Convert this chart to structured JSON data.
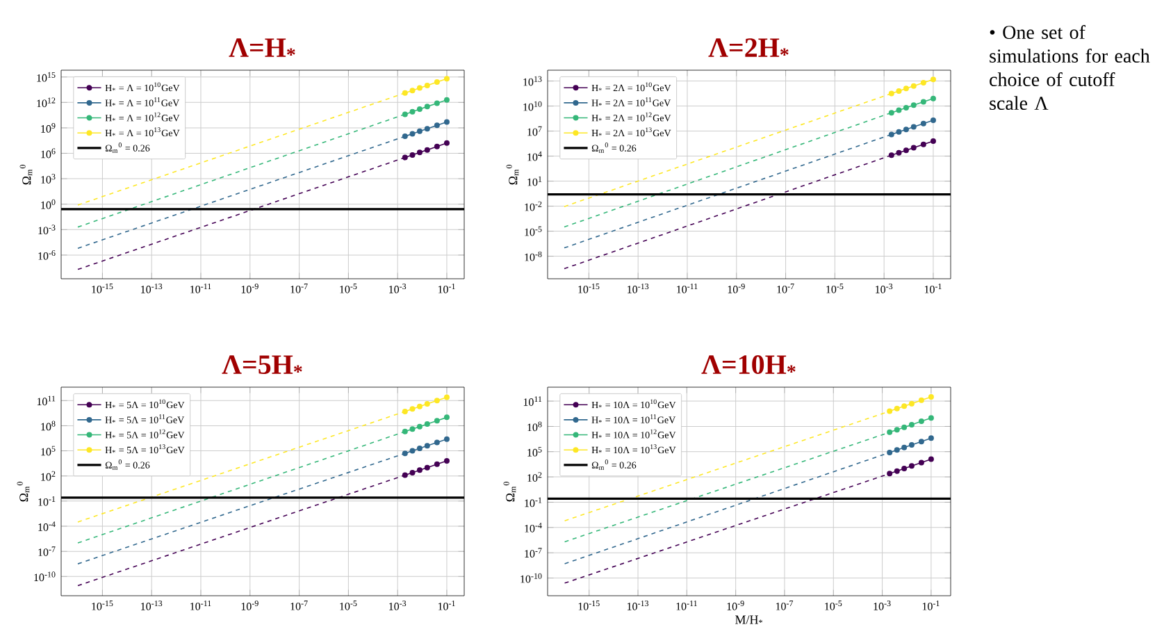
{
  "chart_data": [
    {
      "type": "line",
      "title": "Λ=H$_{*}$",
      "ylabel": "Ω$_{m}$$^{0}$",
      "log": "xy",
      "grid": true,
      "legend": "top left",
      "xlim": [
        2.1e-17,
        0.51
      ],
      "ylim": [
        1.6e-09,
        6300000000000000.0
      ],
      "xticks": [
        {
          "value": 1e-15,
          "label": "10$^{-15}$"
        },
        {
          "value": 1e-13,
          "label": "10$^{-13}$"
        },
        {
          "value": 1e-11,
          "label": "10$^{-11}$"
        },
        {
          "value": 1e-09,
          "label": "10$^{-9}$"
        },
        {
          "value": 1e-07,
          "label": "10$^{-7}$"
        },
        {
          "value": 1e-05,
          "label": "10$^{-5}$"
        },
        {
          "value": 0.001,
          "label": "10$^{-3}$"
        },
        {
          "value": 0.1,
          "label": "10$^{-1}$"
        }
      ],
      "yticks": [
        {
          "value": 1e-06,
          "label": "10$^{-6}$"
        },
        {
          "value": 0.001,
          "label": "10$^{-3}$"
        },
        {
          "value": 1,
          "label": "10$^{0}$"
        },
        {
          "value": 1000,
          "label": "10$^{3}$"
        },
        {
          "value": 1000000.0,
          "label": "10$^{6}$"
        },
        {
          "value": 1000000000.0,
          "label": "10$^{9}$"
        },
        {
          "value": 1000000000000.0,
          "label": "10$^{12}$"
        },
        {
          "value": 1000000000000000.0,
          "label": "10$^{15}$"
        }
      ],
      "ref_lines": [
        {
          "axis": "y",
          "value": 0.26,
          "label": "Ω$_{m}$$^{0}$ = 0.26",
          "color": "#000000"
        }
      ],
      "series": [
        {
          "color": "#440154",
          "line_style": "dashed",
          "marker": "none",
          "x": [
            1e-16,
            0.002
          ],
          "values": [
            2e-08,
            320000.0
          ]
        },
        {
          "color": "#31688e",
          "line_style": "dashed",
          "marker": "none",
          "x": [
            1e-16,
            0.002
          ],
          "values": [
            6.3e-06,
            100000000.0
          ]
        },
        {
          "color": "#35b779",
          "line_style": "dashed",
          "marker": "none",
          "x": [
            1e-16,
            0.002
          ],
          "values": [
            0.002,
            40000000000.0
          ]
        },
        {
          "color": "#fde725",
          "line_style": "dashed",
          "marker": "none",
          "x": [
            1e-16,
            0.002
          ],
          "values": [
            0.79,
            13000000000000.0
          ]
        },
        {
          "name": "H$_{*}$ = Λ = 10$^{10}$GeV",
          "color": "#440154",
          "marker": "circle",
          "x": [
            0.002,
            0.004,
            0.0079,
            0.016,
            0.04,
            0.1
          ],
          "values": [
            320000.0,
            630000.0,
            1300000.0,
            2500000.0,
            6300000.0,
            16000000.0
          ]
        },
        {
          "name": "H$_{*}$ = Λ = 10$^{11}$GeV",
          "color": "#31688e",
          "marker": "circle",
          "x": [
            0.002,
            0.004,
            0.0079,
            0.016,
            0.04,
            0.1
          ],
          "values": [
            100000000.0,
            200000000.0,
            400000000.0,
            790000000.0,
            2000000000.0,
            5000000000.0
          ]
        },
        {
          "name": "H$_{*}$ = Λ = 10$^{12}$GeV",
          "color": "#35b779",
          "marker": "circle",
          "x": [
            0.002,
            0.004,
            0.0079,
            0.016,
            0.04,
            0.1
          ],
          "values": [
            40000000000.0,
            79000000000.0,
            160000000000.0,
            320000000000.0,
            790000000000.0,
            2000000000000.0
          ]
        },
        {
          "name": "H$_{*}$ = Λ = 10$^{13}$GeV",
          "color": "#fde725",
          "marker": "circle",
          "x": [
            0.002,
            0.004,
            0.0079,
            0.016,
            0.04,
            0.1
          ],
          "values": [
            13000000000000.0,
            25000000000000.0,
            50000000000000.0,
            100000000000000.0,
            250000000000000.0,
            630000000000000.0
          ]
        }
      ]
    },
    {
      "type": "line",
      "title": "Λ=2H$_{*}$",
      "ylabel": "Ω$_{m}$$^{0}$",
      "log": "xy",
      "grid": true,
      "legend": "top left",
      "xlim": [
        2.1e-17,
        0.51
      ],
      "ylim": [
        2e-11,
        200000000000000.0
      ],
      "xticks": [
        {
          "value": 1e-15,
          "label": "10$^{-15}$"
        },
        {
          "value": 1e-13,
          "label": "10$^{-13}$"
        },
        {
          "value": 1e-11,
          "label": "10$^{-11}$"
        },
        {
          "value": 1e-09,
          "label": "10$^{-9}$"
        },
        {
          "value": 1e-07,
          "label": "10$^{-7}$"
        },
        {
          "value": 1e-05,
          "label": "10$^{-5}$"
        },
        {
          "value": 0.001,
          "label": "10$^{-3}$"
        },
        {
          "value": 0.1,
          "label": "10$^{-1}$"
        }
      ],
      "yticks": [
        {
          "value": 1e-08,
          "label": "10$^{-8}$"
        },
        {
          "value": 1e-05,
          "label": "10$^{-5}$"
        },
        {
          "value": 0.01,
          "label": "10$^{-2}$"
        },
        {
          "value": 10,
          "label": "10$^{1}$"
        },
        {
          "value": 10000.0,
          "label": "10$^{4}$"
        },
        {
          "value": 10000000.0,
          "label": "10$^{7}$"
        },
        {
          "value": 10000000000.0,
          "label": "10$^{10}$"
        },
        {
          "value": 10000000000000.0,
          "label": "10$^{13}$"
        }
      ],
      "ref_lines": [
        {
          "axis": "y",
          "value": 0.26,
          "label": "Ω$_{m}$$^{0}$ = 0.26",
          "color": "#000000"
        }
      ],
      "series": [
        {
          "color": "#440154",
          "line_style": "dashed",
          "marker": "none",
          "x": [
            1e-16,
            0.002
          ],
          "values": [
            3.2e-10,
            13000.0
          ]
        },
        {
          "color": "#31688e",
          "line_style": "dashed",
          "marker": "none",
          "x": [
            1e-16,
            0.002
          ],
          "values": [
            1e-07,
            4000000.0
          ]
        },
        {
          "color": "#35b779",
          "line_style": "dashed",
          "marker": "none",
          "x": [
            1e-16,
            0.002
          ],
          "values": [
            3.2e-05,
            1600000000.0
          ]
        },
        {
          "color": "#fde725",
          "line_style": "dashed",
          "marker": "none",
          "x": [
            1e-16,
            0.002
          ],
          "values": [
            0.009,
            320000000000.0
          ]
        },
        {
          "name": "H$_{*}$ = 2Λ = 10$^{10}$GeV",
          "color": "#440154",
          "marker": "circle",
          "x": [
            0.002,
            0.004,
            0.0079,
            0.016,
            0.04,
            0.1
          ],
          "values": [
            13000.0,
            25000.0,
            50000.0,
            100000.0,
            250000.0,
            630000.0
          ]
        },
        {
          "name": "H$_{*}$ = 2Λ = 10$^{11}$GeV",
          "color": "#31688e",
          "marker": "circle",
          "x": [
            0.002,
            0.004,
            0.0079,
            0.016,
            0.04,
            0.1
          ],
          "values": [
            4000000.0,
            7900000.0,
            16000000.0,
            32000000.0,
            79000000.0,
            200000000.0
          ]
        },
        {
          "name": "H$_{*}$ = 2Λ = 10$^{12}$GeV",
          "color": "#35b779",
          "marker": "circle",
          "x": [
            0.002,
            0.004,
            0.0079,
            0.016,
            0.04,
            0.1
          ],
          "values": [
            1600000000.0,
            3200000000.0,
            6300000000.0,
            13000000000.0,
            32000000000.0,
            79000000000.0
          ]
        },
        {
          "name": "H$_{*}$ = 2Λ = 10$^{13}$GeV",
          "color": "#fde725",
          "marker": "circle",
          "x": [
            0.002,
            0.004,
            0.0079,
            0.016,
            0.04,
            0.1
          ],
          "values": [
            320000000000.0,
            630000000000.0,
            1300000000000.0,
            2500000000000.0,
            6300000000000.0,
            16000000000000.0
          ]
        }
      ]
    },
    {
      "type": "line",
      "title": "Λ=5H$_{*}$",
      "ylabel": "Ω$_{m}$$^{0}$",
      "log": "xy",
      "grid": true,
      "legend": "top left",
      "xlim": [
        2.1e-17,
        0.51
      ],
      "ylim": [
        5e-13,
        4000000000000.0
      ],
      "xticks": [
        {
          "value": 1e-15,
          "label": "10$^{-15}$"
        },
        {
          "value": 1e-13,
          "label": "10$^{-13}$"
        },
        {
          "value": 1e-11,
          "label": "10$^{-11}$"
        },
        {
          "value": 1e-09,
          "label": "10$^{-9}$"
        },
        {
          "value": 1e-07,
          "label": "10$^{-7}$"
        },
        {
          "value": 1e-05,
          "label": "10$^{-5}$"
        },
        {
          "value": 0.001,
          "label": "10$^{-3}$"
        },
        {
          "value": 0.1,
          "label": "10$^{-1}$"
        }
      ],
      "yticks": [
        {
          "value": 1e-10,
          "label": "10$^{-10}$"
        },
        {
          "value": 1e-07,
          "label": "10$^{-7}$"
        },
        {
          "value": 0.0001,
          "label": "10$^{-4}$"
        },
        {
          "value": 0.1,
          "label": "10$^{-1}$"
        },
        {
          "value": 100,
          "label": "10$^{2}$"
        },
        {
          "value": 100000.0,
          "label": "10$^{5}$"
        },
        {
          "value": 100000000.0,
          "label": "10$^{8}$"
        },
        {
          "value": 100000000000.0,
          "label": "10$^{11}$"
        }
      ],
      "ref_lines": [
        {
          "axis": "y",
          "value": 0.26,
          "label": "Ω$_{m}$$^{0}$ = 0.26",
          "color": "#000000"
        }
      ],
      "series": [
        {
          "color": "#440154",
          "line_style": "dashed",
          "marker": "none",
          "x": [
            1e-16,
            0.002
          ],
          "values": [
            7.9e-12,
            126
          ]
        },
        {
          "color": "#31688e",
          "line_style": "dashed",
          "marker": "none",
          "x": [
            1e-16,
            0.002
          ],
          "values": [
            3.2e-09,
            50000.0
          ]
        },
        {
          "color": "#35b779",
          "line_style": "dashed",
          "marker": "none",
          "x": [
            1e-16,
            0.002
          ],
          "values": [
            1e-06,
            20000000.0
          ]
        },
        {
          "color": "#fde725",
          "line_style": "dashed",
          "marker": "none",
          "x": [
            1e-16,
            0.002
          ],
          "values": [
            0.00032,
            5000000000.0
          ]
        },
        {
          "name": "H$_{*}$ = 5Λ = 10$^{10}$GeV",
          "color": "#440154",
          "marker": "circle",
          "x": [
            0.002,
            0.004,
            0.0079,
            0.016,
            0.04,
            0.1
          ],
          "values": [
            126,
            250,
            500,
            1000,
            2500,
            6300
          ]
        },
        {
          "name": "H$_{*}$ = 5Λ = 10$^{11}$GeV",
          "color": "#31688e",
          "marker": "circle",
          "x": [
            0.002,
            0.004,
            0.0079,
            0.016,
            0.04,
            0.1
          ],
          "values": [
            50000.0,
            100000.0,
            200000.0,
            400000.0,
            1000000.0,
            2500000.0
          ]
        },
        {
          "name": "H$_{*}$ = 5Λ = 10$^{12}$GeV",
          "color": "#35b779",
          "marker": "circle",
          "x": [
            0.002,
            0.004,
            0.0079,
            0.016,
            0.04,
            0.1
          ],
          "values": [
            20000000.0,
            40000000.0,
            79000000.0,
            160000000.0,
            400000000.0,
            1000000000.0
          ]
        },
        {
          "name": "H$_{*}$ = 5Λ = 10$^{13}$GeV",
          "color": "#fde725",
          "marker": "circle",
          "x": [
            0.002,
            0.004,
            0.0079,
            0.016,
            0.04,
            0.1
          ],
          "values": [
            5000000000.0,
            10000000000.0,
            20000000000.0,
            40000000000.0,
            100000000000.0,
            250000000000.0
          ]
        }
      ]
    },
    {
      "type": "line",
      "title": "Λ=10H$_{*}$",
      "xlabel": "M/H$_{*}$",
      "ylabel": "Ω$_{m}$$^{0}$",
      "log": "xy",
      "grid": true,
      "legend": "top left",
      "xlim": [
        2e-17,
        0.63
      ],
      "ylim": [
        8e-13,
        4500000000000.0
      ],
      "xticks": [
        {
          "value": 1e-15,
          "label": "10$^{-15}$"
        },
        {
          "value": 1e-13,
          "label": "10$^{-13}$"
        },
        {
          "value": 1e-11,
          "label": "10$^{-11}$"
        },
        {
          "value": 1e-09,
          "label": "10$^{-9}$"
        },
        {
          "value": 1e-07,
          "label": "10$^{-7}$"
        },
        {
          "value": 1e-05,
          "label": "10$^{-5}$"
        },
        {
          "value": 0.001,
          "label": "10$^{-3}$"
        },
        {
          "value": 0.1,
          "label": "10$^{-1}$"
        }
      ],
      "yticks": [
        {
          "value": 1e-10,
          "label": "10$^{-10}$"
        },
        {
          "value": 1e-07,
          "label": "10$^{-7}$"
        },
        {
          "value": 0.0001,
          "label": "10$^{-4}$"
        },
        {
          "value": 0.1,
          "label": "10$^{-1}$"
        },
        {
          "value": 100,
          "label": "10$^{2}$"
        },
        {
          "value": 100000.0,
          "label": "10$^{5}$"
        },
        {
          "value": 100000000.0,
          "label": "10$^{8}$"
        },
        {
          "value": 100000000000.0,
          "label": "10$^{11}$"
        }
      ],
      "ref_lines": [
        {
          "axis": "y",
          "value": 0.26,
          "label": "Ω$_{m}$$^{0}$ = 0.26",
          "color": "#000000"
        }
      ],
      "series": [
        {
          "color": "#440154",
          "line_style": "dashed",
          "marker": "none",
          "x": [
            1e-16,
            0.002
          ],
          "values": [
            2.5e-11,
            250
          ]
        },
        {
          "color": "#31688e",
          "line_style": "dashed",
          "marker": "none",
          "x": [
            1e-16,
            0.002
          ],
          "values": [
            5e-09,
            79000.0
          ]
        },
        {
          "color": "#35b779",
          "line_style": "dashed",
          "marker": "none",
          "x": [
            1e-16,
            0.002
          ],
          "values": [
            2e-06,
            20000000.0
          ]
        },
        {
          "color": "#fde725",
          "line_style": "dashed",
          "marker": "none",
          "x": [
            1e-16,
            0.002
          ],
          "values": [
            0.00063,
            6300000000.0
          ]
        },
        {
          "name": "H$_{*}$ = 10Λ = 10$^{10}$GeV",
          "color": "#440154",
          "marker": "circle",
          "x": [
            0.002,
            0.004,
            0.0079,
            0.016,
            0.04,
            0.1
          ],
          "values": [
            250,
            500,
            1000,
            2000,
            5000,
            13000.0
          ]
        },
        {
          "name": "H$_{*}$ = 10Λ = 10$^{11}$GeV",
          "color": "#31688e",
          "marker": "circle",
          "x": [
            0.002,
            0.004,
            0.0079,
            0.016,
            0.04,
            0.1
          ],
          "values": [
            79000.0,
            160000.0,
            320000.0,
            630000.0,
            1600000.0,
            4000000.0
          ]
        },
        {
          "name": "H$_{*}$ = 10Λ = 10$^{12}$GeV",
          "color": "#35b779",
          "marker": "circle",
          "x": [
            0.002,
            0.004,
            0.0079,
            0.016,
            0.04,
            0.1
          ],
          "values": [
            20000000.0,
            40000000.0,
            79000000.0,
            160000000.0,
            400000000.0,
            1000000000.0
          ]
        },
        {
          "name": "H$_{*}$ = 10Λ = 10$^{13}$GeV",
          "color": "#fde725",
          "marker": "circle",
          "x": [
            0.002,
            0.004,
            0.0079,
            0.016,
            0.04,
            0.1
          ],
          "values": [
            6300000000.0,
            13000000000.0,
            25000000000.0,
            50000000000.0,
            130000000000.0,
            320000000000.0
          ]
        }
      ]
    },
    {
      "type": "other",
      "annotations": [
        "• One set of simulations for each choice of cutoff scale Λ"
      ]
    }
  ]
}
